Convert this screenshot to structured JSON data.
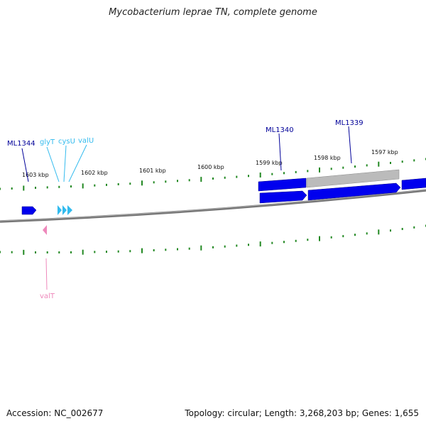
{
  "title": "Mycobacterium leprae TN, complete genome",
  "footer": {
    "accession": "Accession: NC_002677",
    "topology": "Topology: circular; Length: 3,268,203 bp; Genes: 1,655"
  },
  "axis_labels": [
    "1603 kbp",
    "1602 kbp",
    "1601 kbp",
    "1600 kbp",
    "1599 kbp",
    "1598 kbp",
    "1597 kbp"
  ],
  "forward_features": [
    {
      "label": "ML1344",
      "type": "gene",
      "color": "#0000cc"
    },
    {
      "label": "glyT",
      "type": "tRNA",
      "color": "#33bbee"
    },
    {
      "label": "cysU",
      "type": "tRNA",
      "color": "#33bbee"
    },
    {
      "label": "valU",
      "type": "tRNA",
      "color": "#33bbee"
    },
    {
      "label": "ML1340",
      "type": "gene",
      "color": "#0000cc"
    },
    {
      "label": "ML1339",
      "type": "gene",
      "color": "#0000cc"
    }
  ],
  "reverse_features": [
    {
      "label": "valT",
      "type": "tRNA",
      "color": "#ee88bb"
    }
  ],
  "colors": {
    "backbone": "#888888",
    "ticks": "#228822",
    "gene": "#0000ee",
    "pseudogene": "#bbbbbb",
    "trna_forward": "#33bbee",
    "trna_reverse": "#ee88bb"
  }
}
